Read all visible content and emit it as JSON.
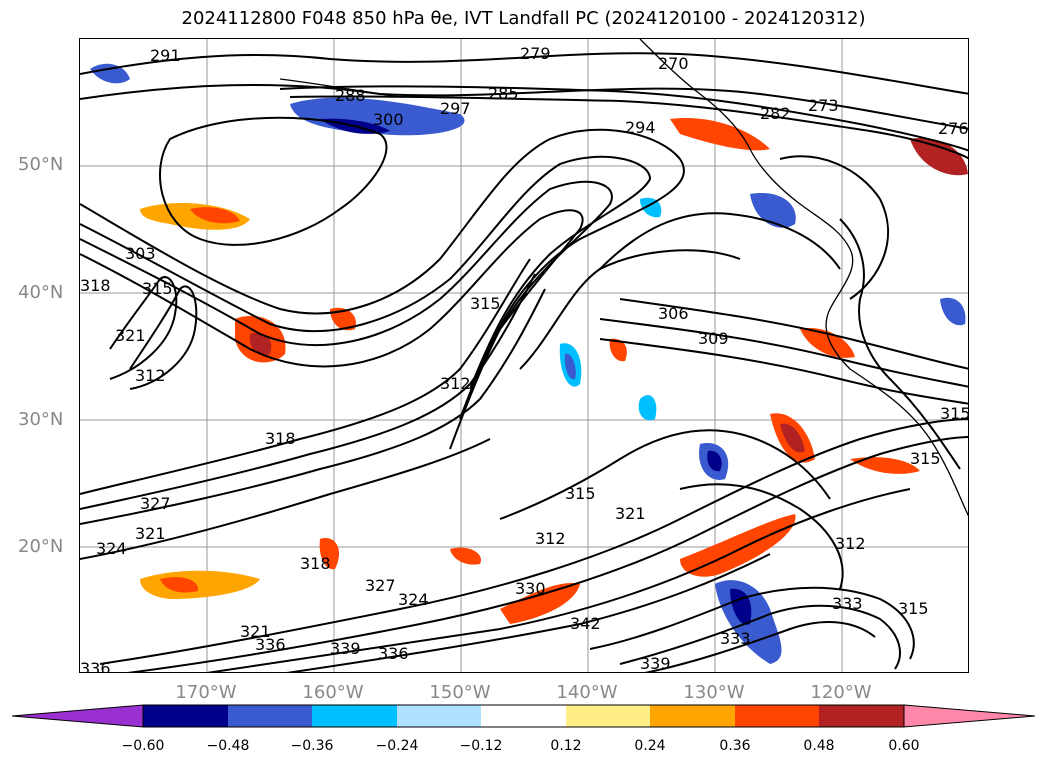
{
  "title": "2024112800 F048 850 hPa θe, IVT Landfall PC (2024120100 - 2024120312)",
  "map": {
    "lat_labels": [
      "50°N",
      "40°N",
      "30°N",
      "20°N"
    ],
    "lon_labels": [
      "170°W",
      "160°W",
      "150°W",
      "140°W",
      "130°W",
      "120°W"
    ],
    "contour_labels": [
      "291",
      "279",
      "270",
      "288",
      "297",
      "300",
      "285",
      "294",
      "282",
      "273",
      "276",
      "303",
      "318",
      "315",
      "321",
      "312",
      "315",
      "306",
      "309",
      "312",
      "318",
      "315",
      "327",
      "324",
      "321",
      "321",
      "327",
      "318",
      "324",
      "330",
      "312",
      "321",
      "342",
      "339",
      "336",
      "333",
      "339",
      "336",
      "312",
      "315",
      "315",
      "315",
      "336",
      "333"
    ],
    "colors": {
      "contour": "#000000",
      "coast": "#000000",
      "grid": "#999999",
      "positive_fills": [
        "#ffee88",
        "#ffa500",
        "#ff4500",
        "#b22222"
      ],
      "negative_fills": [
        "#b0e0ff",
        "#00bfff",
        "#3a5bd0",
        "#00008b"
      ]
    }
  },
  "colorbar": {
    "ticks": [
      "−0.60",
      "−0.48",
      "−0.36",
      "−0.24",
      "−0.12",
      "0.12",
      "0.24",
      "0.36",
      "0.48",
      "0.60"
    ],
    "colors": [
      "#9b30d0",
      "#00008b",
      "#3a5bd0",
      "#00bfff",
      "#b0e0ff",
      "#ffffff",
      "#ffee88",
      "#ffa500",
      "#ff4500",
      "#b22222",
      "#ff88aa",
      "#ff88aa"
    ]
  }
}
